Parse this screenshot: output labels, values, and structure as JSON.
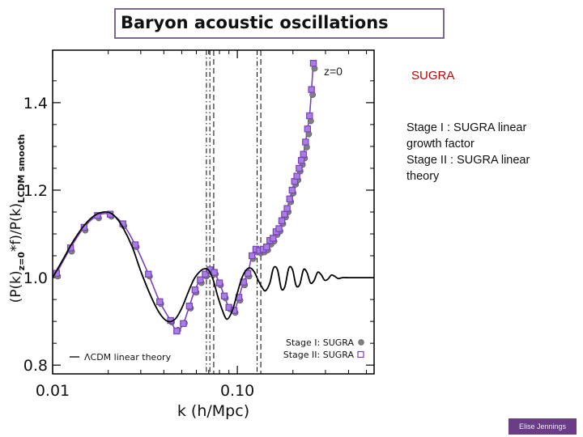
{
  "title": "Baryon acoustic oscillations",
  "annotation_z": "z=0",
  "sugra_label": "SUGRA",
  "stage_lines": [
    "Stage I : SUGRA linear growth factor",
    "Stage II : SUGRA linear theory"
  ],
  "credit": "Elise Jennings",
  "colors": {
    "title_border": "#7a6a8e",
    "sugra_red": "#c00000",
    "stage1_marker": "#7f7f7f",
    "stage2_marker": "#7b3fbf",
    "credit_bg": "#6a3d86"
  },
  "chart_data": {
    "type": "line",
    "title": "",
    "xlabel": "k (h/Mpc)",
    "ylabel": "(P(k)_{z=0}*f)/P(k)_{LCDM smooth}",
    "xscale": "log",
    "xlim": [
      0.01,
      0.55
    ],
    "ylim": [
      0.78,
      1.52
    ],
    "x_ticks": [
      0.01,
      0.1
    ],
    "x_tick_labels": [
      "0.01",
      "0.10"
    ],
    "y_ticks": [
      0.8,
      1.0,
      1.2,
      1.4
    ],
    "y_tick_labels": [
      "0.8",
      "1.0",
      "1.2",
      "1.4"
    ],
    "vlines_dashdot": [
      0.068,
      0.071,
      0.128
    ],
    "vlines_dashed": [
      0.0745,
      0.134
    ],
    "legend": {
      "placement": "bottom",
      "entries": [
        {
          "label": "LCDM linear theory",
          "style": "line"
        },
        {
          "label": "Stage I: SUGRA",
          "style": "circle"
        },
        {
          "label": "Stage II: SUGRA",
          "style": "square"
        }
      ]
    },
    "series": [
      {
        "name": "LCDM linear theory",
        "style": "line",
        "x": [
          0.01,
          0.0115,
          0.013,
          0.015,
          0.017,
          0.019,
          0.0205,
          0.022,
          0.024,
          0.027,
          0.03,
          0.034,
          0.038,
          0.042,
          0.046,
          0.05,
          0.054,
          0.058,
          0.062,
          0.066,
          0.07,
          0.074,
          0.078,
          0.083,
          0.088,
          0.094,
          0.1,
          0.106,
          0.112,
          0.118,
          0.124,
          0.13,
          0.136,
          0.142,
          0.15,
          0.157,
          0.165,
          0.173,
          0.181,
          0.19,
          0.199,
          0.208,
          0.218,
          0.228,
          0.238,
          0.249,
          0.26,
          0.272,
          0.284,
          0.297,
          0.31,
          0.323,
          0.337,
          0.352,
          0.37,
          0.4,
          0.45,
          0.5,
          0.55
        ],
        "y": [
          1.0,
          1.045,
          1.085,
          1.122,
          1.143,
          1.15,
          1.148,
          1.138,
          1.115,
          1.07,
          1.015,
          0.958,
          0.918,
          0.9,
          0.905,
          0.93,
          0.965,
          0.995,
          1.012,
          1.02,
          1.017,
          0.995,
          0.96,
          0.925,
          0.905,
          0.925,
          0.965,
          1.0,
          1.018,
          1.022,
          1.012,
          0.993,
          0.978,
          0.97,
          0.988,
          1.022,
          1.018,
          0.975,
          0.98,
          1.022,
          1.018,
          0.982,
          0.985,
          1.018,
          1.012,
          0.988,
          0.993,
          1.012,
          1.007,
          0.994,
          0.997,
          1.006,
          1.003,
          0.998,
          1.0,
          1.0,
          1.0,
          1.0,
          1.0
        ]
      },
      {
        "name": "Stage I: SUGRA",
        "style": "circle",
        "x": [
          0.0105,
          0.0125,
          0.0148,
          0.0175,
          0.0205,
          0.024,
          0.028,
          0.033,
          0.038,
          0.0435,
          0.047,
          0.051,
          0.055,
          0.059,
          0.063,
          0.067,
          0.071,
          0.075,
          0.08,
          0.085,
          0.09,
          0.096,
          0.102,
          0.108,
          0.114,
          0.12,
          0.126,
          0.132,
          0.138,
          0.144,
          0.15,
          0.156,
          0.162,
          0.168,
          0.174,
          0.18,
          0.186,
          0.192,
          0.198,
          0.204,
          0.21,
          0.216,
          0.222,
          0.228,
          0.234,
          0.24,
          0.246,
          0.252,
          0.258
        ],
        "y": [
          1.005,
          1.062,
          1.11,
          1.138,
          1.142,
          1.12,
          1.072,
          1.005,
          0.942,
          0.9,
          0.882,
          0.898,
          0.932,
          0.968,
          0.99,
          1.005,
          1.015,
          1.01,
          0.985,
          0.955,
          0.93,
          0.922,
          0.95,
          0.985,
          1.005,
          1.045,
          1.06,
          1.058,
          1.06,
          1.065,
          1.078,
          1.085,
          1.1,
          1.108,
          1.125,
          1.14,
          1.152,
          1.175,
          1.195,
          1.215,
          1.225,
          1.245,
          1.26,
          1.275,
          1.3,
          1.33,
          1.36,
          1.42,
          1.48
        ]
      },
      {
        "name": "Stage II: SUGRA",
        "style": "square",
        "x": [
          0.0105,
          0.0125,
          0.0148,
          0.0175,
          0.0205,
          0.024,
          0.028,
          0.033,
          0.038,
          0.0435,
          0.047,
          0.051,
          0.055,
          0.059,
          0.063,
          0.067,
          0.071,
          0.075,
          0.08,
          0.085,
          0.09,
          0.096,
          0.102,
          0.108,
          0.114,
          0.12,
          0.126,
          0.132,
          0.138,
          0.144,
          0.15,
          0.156,
          0.162,
          0.168,
          0.174,
          0.18,
          0.186,
          0.192,
          0.198,
          0.204,
          0.21,
          0.216,
          0.222,
          0.228,
          0.234,
          0.24,
          0.246,
          0.252,
          0.258
        ],
        "y": [
          1.01,
          1.068,
          1.115,
          1.142,
          1.145,
          1.123,
          1.075,
          1.008,
          0.945,
          0.902,
          0.878,
          0.895,
          0.935,
          0.972,
          0.995,
          1.008,
          1.018,
          1.012,
          0.988,
          0.958,
          0.932,
          0.925,
          0.955,
          0.99,
          1.01,
          1.05,
          1.065,
          1.062,
          1.065,
          1.07,
          1.085,
          1.09,
          1.105,
          1.112,
          1.13,
          1.145,
          1.158,
          1.18,
          1.2,
          1.22,
          1.232,
          1.25,
          1.268,
          1.282,
          1.31,
          1.34,
          1.37,
          1.43,
          1.49
        ]
      }
    ]
  }
}
